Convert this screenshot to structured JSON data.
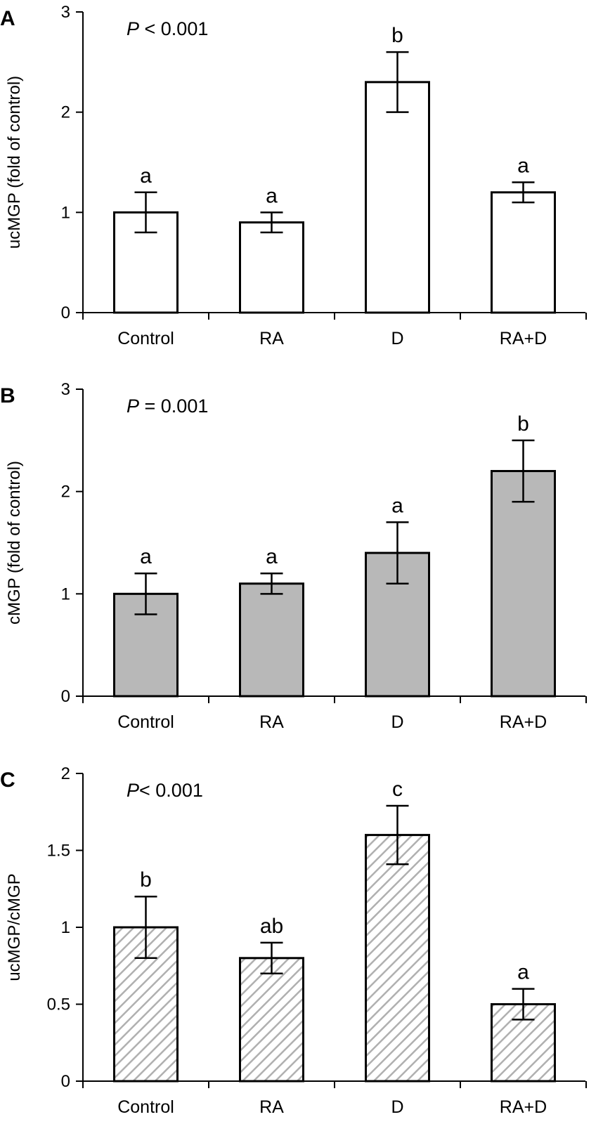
{
  "chart_data": [
    {
      "type": "bar",
      "panel": "A",
      "title": "",
      "annotation": {
        "italic": "P",
        "rest": " < 0.001"
      },
      "xlabel": "",
      "ylabel": "ucMGP (fold of control)",
      "ylim": [
        0,
        3
      ],
      "yticks": [
        0,
        1,
        2,
        3
      ],
      "ytick_labels": [
        "0",
        "1",
        "2",
        "3"
      ],
      "categories": [
        "Control",
        "RA",
        "D",
        "RA+D"
      ],
      "values": [
        1.0,
        0.9,
        2.3,
        1.2
      ],
      "errors": [
        0.2,
        0.1,
        0.3,
        0.1
      ],
      "letters": [
        "a",
        "a",
        "b",
        "a"
      ],
      "fill": "#ffffff",
      "pattern": "none",
      "grid": false
    },
    {
      "type": "bar",
      "panel": "B",
      "title": "",
      "annotation": {
        "italic": "P",
        "rest": " = 0.001"
      },
      "xlabel": "",
      "ylabel": "cMGP  (fold of control)",
      "ylim": [
        0,
        3
      ],
      "yticks": [
        0,
        1,
        2,
        3
      ],
      "ytick_labels": [
        "0",
        "1",
        "2",
        "3"
      ],
      "categories": [
        "Control",
        "RA",
        "D",
        "RA+D"
      ],
      "values": [
        1.0,
        1.1,
        1.4,
        2.2
      ],
      "errors": [
        0.2,
        0.1,
        0.3,
        0.3
      ],
      "letters": [
        "a",
        "a",
        "a",
        "b"
      ],
      "fill": "#b8b8b8",
      "pattern": "none",
      "grid": false
    },
    {
      "type": "bar",
      "panel": "C",
      "title": "",
      "annotation": {
        "italic": "P",
        "rest": "< 0.001"
      },
      "xlabel": "",
      "ylabel": "ucMGP/cMGP",
      "ylim": [
        0,
        2
      ],
      "yticks": [
        0,
        0.5,
        1,
        1.5,
        2
      ],
      "ytick_labels": [
        "0",
        "0.5",
        "1",
        "1.5",
        "2"
      ],
      "categories": [
        "Control",
        "RA",
        "D",
        "RA+D"
      ],
      "values": [
        1.0,
        0.8,
        1.6,
        0.5
      ],
      "errors": [
        0.2,
        0.1,
        0.19,
        0.1
      ],
      "letters": [
        "b",
        "ab",
        "c",
        "a"
      ],
      "fill": "#ffffff",
      "pattern": "diagonal-hatch",
      "hatch_color": "#b0b0b0",
      "grid": false
    }
  ]
}
